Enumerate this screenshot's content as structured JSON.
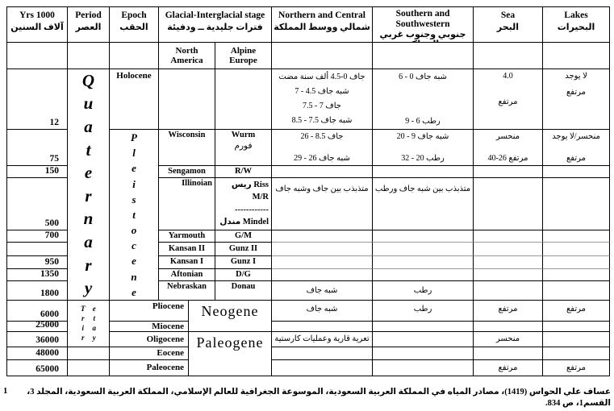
{
  "header": {
    "yrs": {
      "en": "Yrs 1000",
      "ar": "آلاف السنين"
    },
    "period": {
      "en": "Period",
      "ar": "العصر"
    },
    "epoch": {
      "en": "Epoch",
      "ar": "الحقب"
    },
    "glacial": {
      "en": "Glacial-Interglacial stage",
      "ar": "فترات جليدية ــ ودفيئة"
    },
    "northern": {
      "en": "Northern and Central",
      "ar": "شمالي ووسط المملكة"
    },
    "southern": {
      "en1": "Southern and",
      "en2": "Southwestern",
      "ar": "جنوبي وجنوب غربي المملكة"
    },
    "sea": {
      "en": "Sea",
      "ar": "البحر"
    },
    "lakes": {
      "en": "Lakes",
      "ar": "البحيرات"
    }
  },
  "subheader": {
    "north_america1": "North",
    "north_america2": "America",
    "alpine_europe1": "Alpine",
    "alpine_europe2": "Europe"
  },
  "periods": {
    "quaternary": "Quaternary",
    "tertiary": "Tertiary"
  },
  "epochs": {
    "holocene": "Holocene",
    "pleistocene": "Pleistocene",
    "pliocene": "Pliocene",
    "miocene": "Miocene",
    "oligocene": "Oligocene",
    "eocene": "Eocene",
    "paleocene": "Paleocene",
    "neogene": "Neogene",
    "paleogene": "Paleogene"
  },
  "yrs": {
    "holocene": "12",
    "wisconsin": "75",
    "sengamon": "150",
    "illinoian": "500",
    "yarmouth": "700",
    "kansan2": "",
    "kansan1": "950",
    "aftonian": "1350",
    "nebraskan": "1800",
    "pliocene": "6000",
    "miocene": "25000",
    "oligocene": "36000",
    "eocene": "48000",
    "paleocene": "65000"
  },
  "stages": {
    "wisconsin": "Wisconsin",
    "wurm": "Wurm",
    "wurm_ar": "فورم",
    "sengamon": "Sengamon",
    "rw": "R/W",
    "illinoian": "Illinoian",
    "illinoian_alpine": [
      "Riss ريس",
      "M/R",
      "------------",
      "Mindel مندل"
    ],
    "yarmouth": "Yarmouth",
    "gm": "G/M",
    "kansan2": "Kansan II",
    "gunz2": "Gunz II",
    "kansan1": "Kansan I",
    "gunz1": "Gunz I",
    "aftonian": "Aftonian",
    "dg": "D/G",
    "nebraskan": "Nebraskan",
    "donau": "Donau"
  },
  "climate": {
    "northern": {
      "holocene": [
        "جاف 0-4.5 ألف سنة مضت",
        "شبه جاف 4.5 - 7",
        "جاف 7 - 7.5",
        "شبه جاف 7.5 - 8.5"
      ],
      "wisconsin": [
        "جاف 8.5 - 26",
        "شبه جاف 26 - 29"
      ],
      "illinoian": "متذبذب بين جاف وشبه جاف",
      "nebraskan": "شبه جاف",
      "pliocene": "شبه جاف",
      "oligocene": "تعرية قارية وعمليات كارستية"
    },
    "southern": {
      "holocene": [
        "شبه جاف 0 - 6",
        "رطب 6 - 9"
      ],
      "wisconsin": [
        "شبه جاف 9 - 20",
        "رطب 20 - 32"
      ],
      "illinoian": "متذبذب بين شبه جاف ورطب",
      "nebraskan": "رطب",
      "pliocene": "رطب"
    },
    "sea": {
      "holocene": [
        "4.0",
        "مرتفع"
      ],
      "wisconsin": [
        "منحسر",
        "مرتفع 26-40"
      ],
      "pliocene": "مرتفع",
      "oligocene": "منحسر",
      "paleocene": "مرتفع"
    },
    "lakes": {
      "holocene": [
        "لا يوجد",
        "مرتفع"
      ],
      "wisconsin": [
        "منحسر/لا يوجد",
        "مرتفع"
      ],
      "pliocene": "مرتفع",
      "paleocene": "مرتفع"
    }
  },
  "footnote": {
    "num": "1",
    "text": "عساف علي الحواس (1419)، مصادر المياه في المملكة العربية السعودية، الموسوعة الجغرافية للعالم الإسلامي، المملكة العربية السعودية، المجلد 3، القسم1، ص 834."
  }
}
